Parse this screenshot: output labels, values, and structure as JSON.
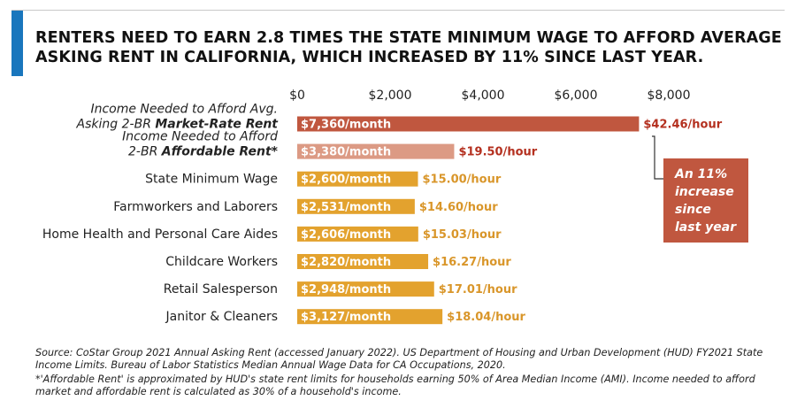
{
  "title_lines": [
    "RENTERS NEED TO EARN 2.8 TIMES THE STATE MINIMUM WAGE TO AFFORD AVERAGE",
    "ASKING RENT IN CALIFORNIA, WHICH INCREASED BY 11% SINCE LAST YEAR."
  ],
  "callout_text": "An 11% increase since last year",
  "source_text": "Source: CoStar Group 2021 Annual Asking Rent (accessed January 2022). US Department of Housing and Urban Development (HUD) FY2021 State Income Limits. Bureau of Labor Statistics Median Annual Wage Data for CA Occupations, 2020.",
  "footnote_text": "*'Affordable Rent' is approximated by HUD's state rent limits for households earning 50% of Area Median Income (AMI). Income needed to afford market and affordable rent is calculated as 30% of a household's income.",
  "colors": {
    "accent_bar": "#1976bd",
    "market_rate": "#c0573f",
    "affordable": "#dc9a84",
    "wage": "#e3a22e",
    "market_hour_text": "#b4301f",
    "wage_hour_text": "#d9962a"
  },
  "chart_data": {
    "type": "bar",
    "orientation": "horizontal",
    "xlim": [
      0,
      8000
    ],
    "ticks": [
      "$0",
      "$2,000",
      "$4,000",
      "$6,000",
      "$8,000"
    ],
    "tick_values": [
      0,
      2000,
      4000,
      6000,
      8000
    ],
    "grid": false,
    "rows": [
      {
        "label_lines": [
          {
            "text": "Income Needed to Afford Avg."
          },
          {
            "text": "Asking 2-BR ",
            "bold": "Market-Rate Rent"
          }
        ],
        "italic": true,
        "value": 7360,
        "bar_label": "$7,360/month",
        "hour_label": "$42.46/hour",
        "color": "#c0573f",
        "hour_color": "#b4301f"
      },
      {
        "label_lines": [
          {
            "text": "Income Needed to Afford"
          },
          {
            "text": "2-BR ",
            "bold": "Affordable Rent*"
          }
        ],
        "italic": true,
        "value": 3380,
        "bar_label": "$3,380/month",
        "hour_label": "$19.50/hour",
        "color": "#dc9a84",
        "hour_color": "#b4301f"
      },
      {
        "label_lines": [
          {
            "text": "State Minimum Wage"
          }
        ],
        "italic": false,
        "value": 2600,
        "bar_label": "$2,600/month",
        "hour_label": "$15.00/hour",
        "color": "#e3a22e",
        "hour_color": "#d9962a"
      },
      {
        "label_lines": [
          {
            "text": "Farmworkers and Laborers"
          }
        ],
        "italic": false,
        "value": 2531,
        "bar_label": "$2,531/month",
        "hour_label": "$14.60/hour",
        "color": "#e3a22e",
        "hour_color": "#d9962a"
      },
      {
        "label_lines": [
          {
            "text": "Home Health and Personal Care Aides"
          }
        ],
        "italic": false,
        "value": 2606,
        "bar_label": "$2,606/month",
        "hour_label": "$15.03/hour",
        "color": "#e3a22e",
        "hour_color": "#d9962a"
      },
      {
        "label_lines": [
          {
            "text": "Childcare Workers"
          }
        ],
        "italic": false,
        "value": 2820,
        "bar_label": "$2,820/month",
        "hour_label": "$16.27/hour",
        "color": "#e3a22e",
        "hour_color": "#d9962a"
      },
      {
        "label_lines": [
          {
            "text": "Retail Salesperson"
          }
        ],
        "italic": false,
        "value": 2948,
        "bar_label": "$2,948/month",
        "hour_label": "$17.01/hour",
        "color": "#e3a22e",
        "hour_color": "#d9962a"
      },
      {
        "label_lines": [
          {
            "text": "Janitor & Cleaners"
          }
        ],
        "italic": false,
        "value": 3127,
        "bar_label": "$3,127/month",
        "hour_label": "$18.04/hour",
        "color": "#e3a22e",
        "hour_color": "#d9962a"
      }
    ]
  }
}
